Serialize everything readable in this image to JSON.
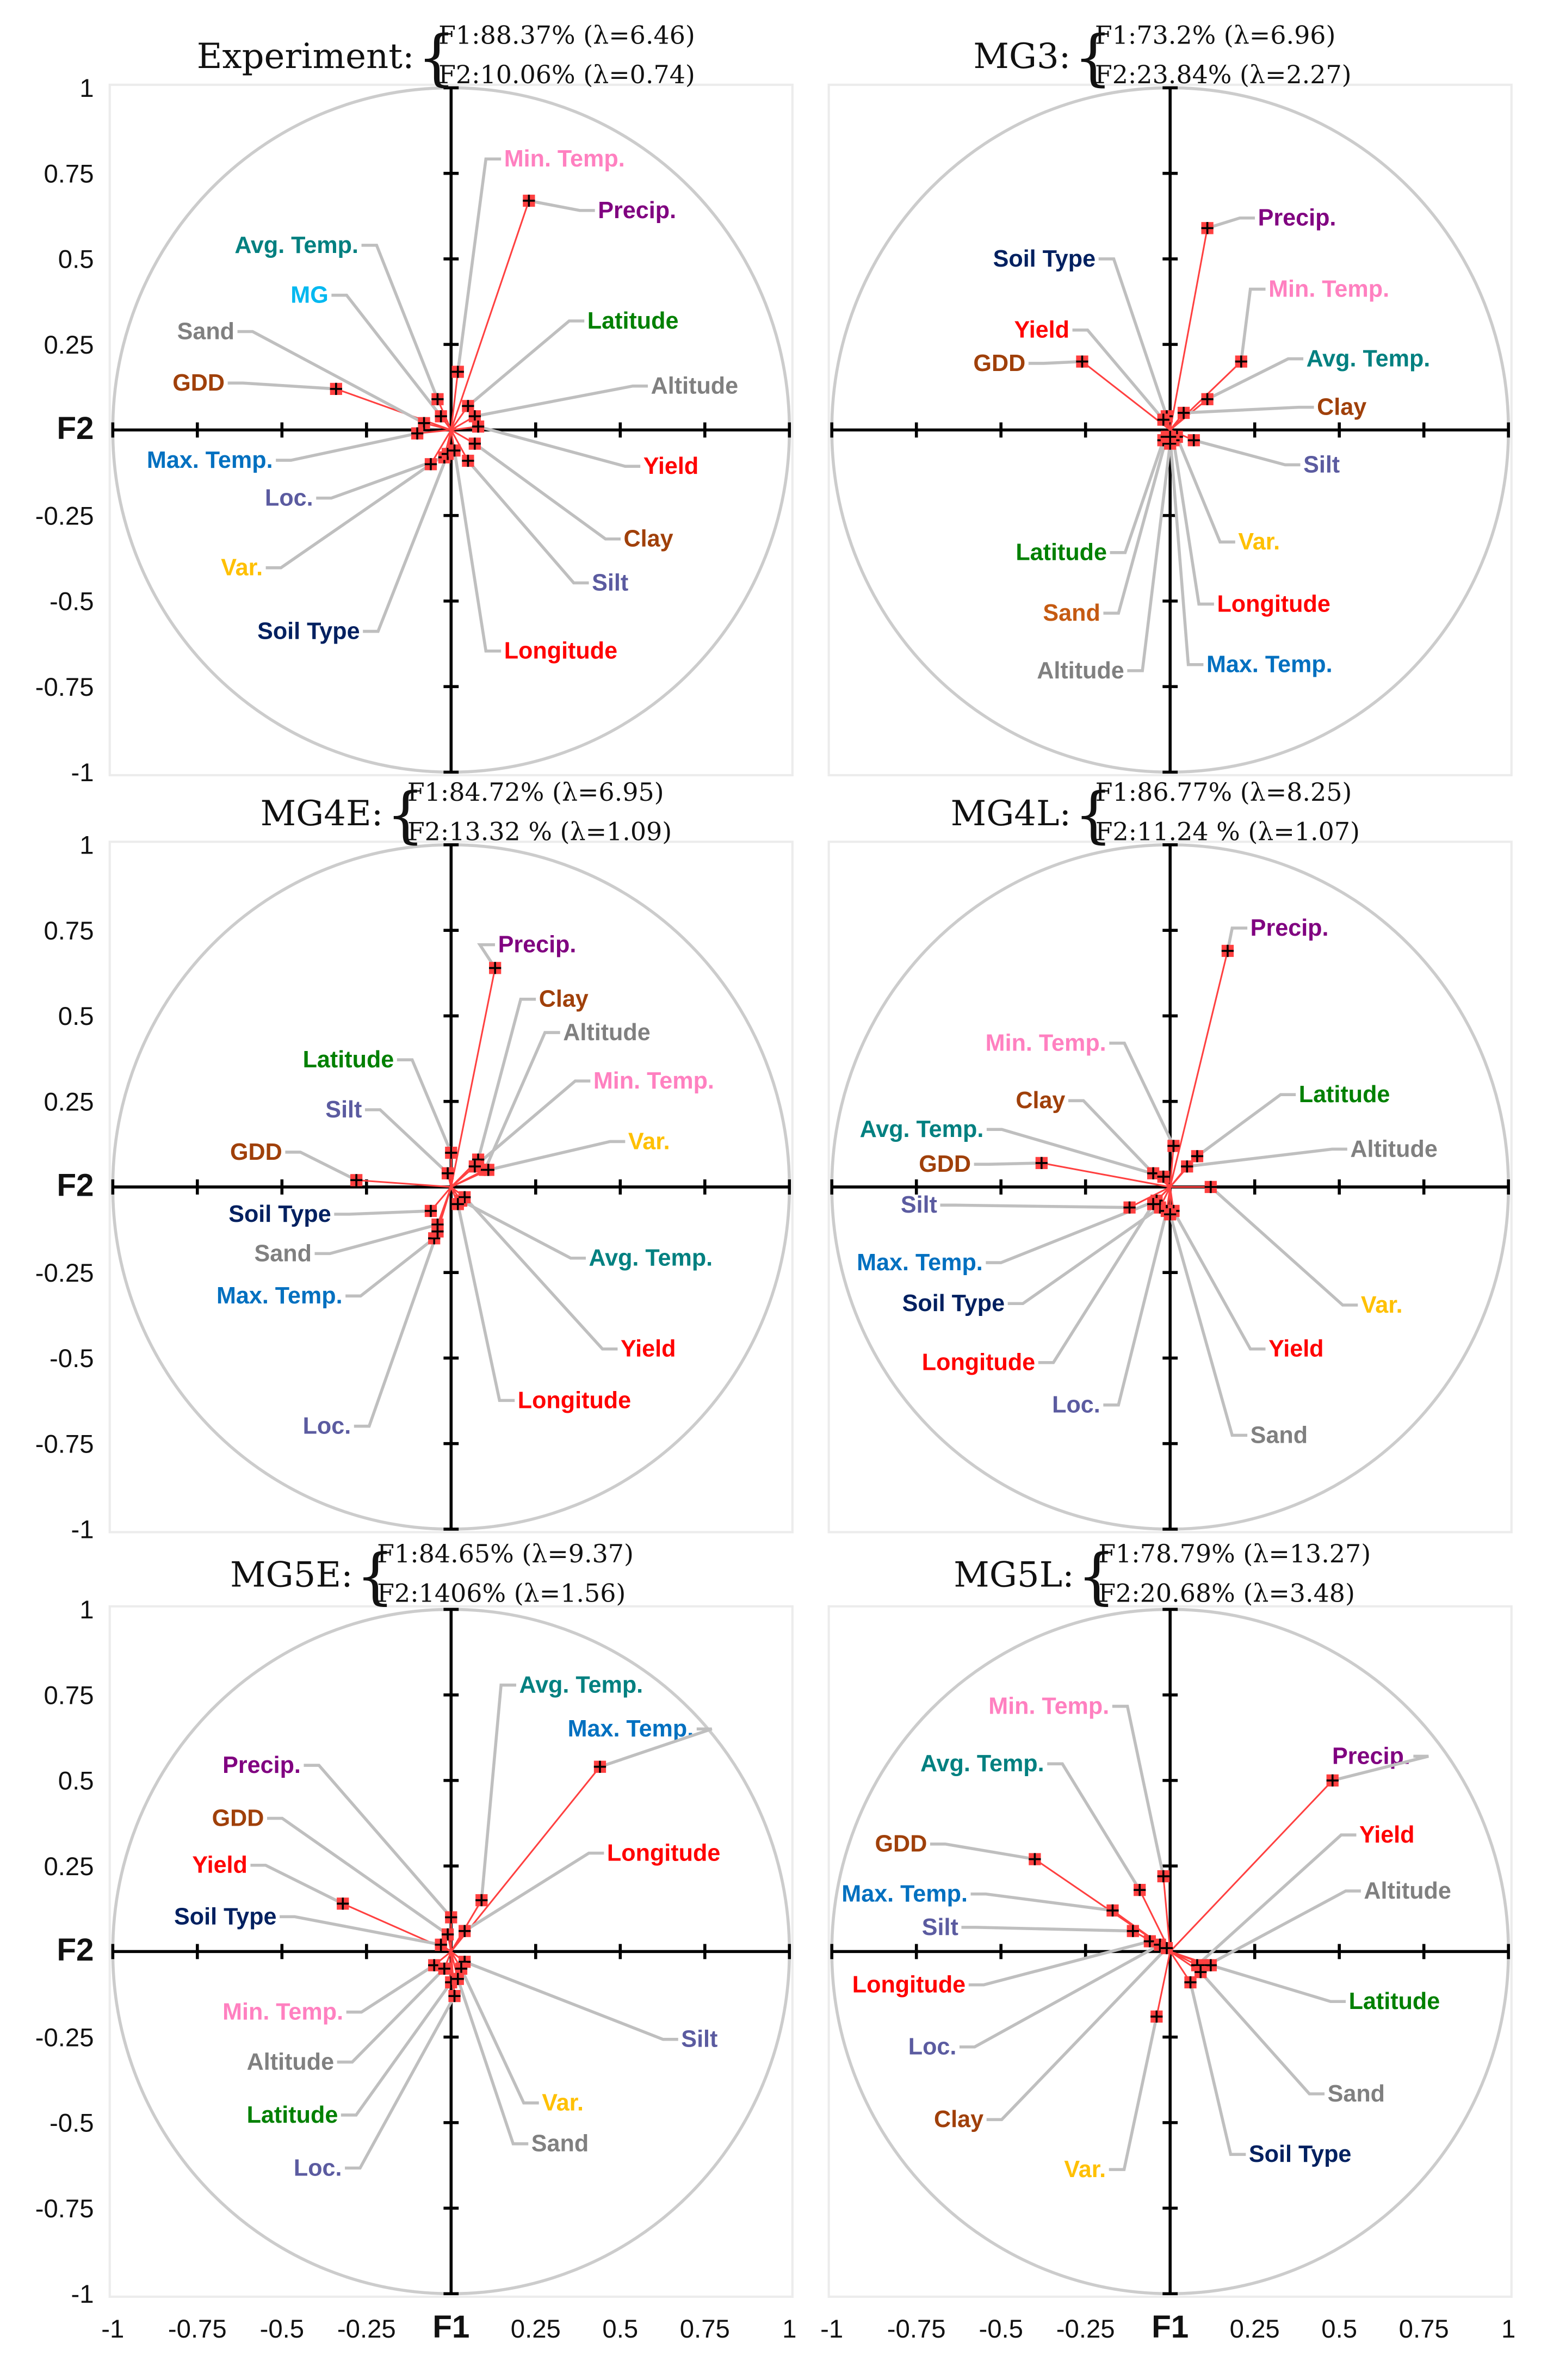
{
  "colors": {
    "pink": "#ff80c0",
    "purple": "#800080",
    "teal": "#008080",
    "cyan": "#00b8f0",
    "green": "#008000",
    "gray": "#808080",
    "brown": "#a0400a",
    "blue": "#0070c0",
    "red": "#ff0000",
    "slate": "#5b5ba0",
    "gold": "#ffc000",
    "navy": "#002060",
    "orange": "#c55a11",
    "vector": "#ff4040",
    "leader": "#bfbfbf",
    "circle": "#cccccc"
  },
  "chart_data": [
    {
      "type": "scatter",
      "name": "Experiment:",
      "f1": "F1:88.37% (λ=6.46)",
      "f2": "F2:10.06% (λ=0.74)",
      "xlabel": "F1",
      "ylabel": "F2",
      "xlim": [
        -1,
        1
      ],
      "ylim": [
        -1,
        1
      ],
      "variables": [
        {
          "name": "Min. Temp.",
          "x": 0.02,
          "y": 0.17,
          "color": "pink"
        },
        {
          "name": "Precip.",
          "x": 0.23,
          "y": 0.67,
          "color": "purple"
        },
        {
          "name": "Avg. Temp.",
          "x": -0.04,
          "y": 0.09,
          "color": "teal"
        },
        {
          "name": "MG",
          "x": -0.03,
          "y": 0.04,
          "color": "cyan"
        },
        {
          "name": "Latitude",
          "x": 0.05,
          "y": 0.07,
          "color": "green"
        },
        {
          "name": "Sand",
          "x": -0.08,
          "y": 0.02,
          "color": "gray"
        },
        {
          "name": "Altitude",
          "x": 0.07,
          "y": 0.04,
          "color": "gray"
        },
        {
          "name": "GDD",
          "x": -0.34,
          "y": 0.12,
          "color": "brown"
        },
        {
          "name": "Max. Temp.",
          "x": -0.1,
          "y": -0.01,
          "color": "blue"
        },
        {
          "name": "Yield",
          "x": 0.08,
          "y": 0.01,
          "color": "red"
        },
        {
          "name": "Loc.",
          "x": -0.02,
          "y": -0.08,
          "color": "slate"
        },
        {
          "name": "Clay",
          "x": 0.07,
          "y": -0.04,
          "color": "brown"
        },
        {
          "name": "Var.",
          "x": -0.06,
          "y": -0.1,
          "color": "gold"
        },
        {
          "name": "Silt",
          "x": 0.05,
          "y": -0.09,
          "color": "slate"
        },
        {
          "name": "Soil Type",
          "x": -0.01,
          "y": -0.07,
          "color": "navy"
        },
        {
          "name": "Longitude",
          "x": 0.01,
          "y": -0.06,
          "color": "red"
        }
      ]
    },
    {
      "type": "scatter",
      "name": "MG3:",
      "f1": "F1:73.2% (λ=6.96)",
      "f2": "F2:23.84% (λ=2.27)",
      "xlabel": "F1",
      "ylabel": "F2",
      "xlim": [
        -1,
        1
      ],
      "ylim": [
        -1,
        1
      ],
      "variables": [
        {
          "name": "Precip.",
          "x": 0.11,
          "y": 0.59,
          "color": "purple"
        },
        {
          "name": "Soil Type",
          "x": -0.01,
          "y": 0.04,
          "color": "navy"
        },
        {
          "name": "Min. Temp.",
          "x": 0.21,
          "y": 0.2,
          "color": "pink"
        },
        {
          "name": "Yield",
          "x": -0.02,
          "y": 0.03,
          "color": "red"
        },
        {
          "name": "GDD",
          "x": -0.26,
          "y": 0.2,
          "color": "brown"
        },
        {
          "name": "Avg. Temp.",
          "x": 0.11,
          "y": 0.09,
          "color": "teal"
        },
        {
          "name": "Clay",
          "x": 0.04,
          "y": 0.05,
          "color": "brown"
        },
        {
          "name": "Silt",
          "x": 0.07,
          "y": -0.03,
          "color": "slate"
        },
        {
          "name": "Var.",
          "x": 0.02,
          "y": -0.02,
          "color": "gold"
        },
        {
          "name": "Latitude",
          "x": -0.02,
          "y": -0.03,
          "color": "green"
        },
        {
          "name": "Longitude",
          "x": 0.01,
          "y": -0.03,
          "color": "red"
        },
        {
          "name": "Sand",
          "x": -0.01,
          "y": -0.02,
          "color": "orange"
        },
        {
          "name": "Altitude",
          "x": 0.0,
          "y": -0.04,
          "color": "gray"
        },
        {
          "name": "Max. Temp.",
          "x": 0.0,
          "y": -0.02,
          "color": "blue"
        }
      ]
    },
    {
      "type": "scatter",
      "name": "MG4E:",
      "f1": "F1:84.72% (λ=6.95)",
      "f2": "F2:13.32 % (λ=1.09)",
      "xlabel": "F1",
      "ylabel": "F2",
      "xlim": [
        -1,
        1
      ],
      "ylim": [
        -1,
        1
      ],
      "variables": [
        {
          "name": "Precip.",
          "x": 0.13,
          "y": 0.64,
          "color": "purple"
        },
        {
          "name": "Clay",
          "x": 0.08,
          "y": 0.08,
          "color": "brown"
        },
        {
          "name": "Altitude",
          "x": 0.1,
          "y": 0.05,
          "color": "gray"
        },
        {
          "name": "Latitude",
          "x": 0.0,
          "y": 0.1,
          "color": "green"
        },
        {
          "name": "Min. Temp.",
          "x": 0.07,
          "y": 0.06,
          "color": "pink"
        },
        {
          "name": "Silt",
          "x": -0.01,
          "y": 0.04,
          "color": "slate"
        },
        {
          "name": "Var.",
          "x": 0.11,
          "y": 0.05,
          "color": "gold"
        },
        {
          "name": "GDD",
          "x": -0.28,
          "y": 0.02,
          "color": "brown"
        },
        {
          "name": "Soil Type",
          "x": -0.06,
          "y": -0.07,
          "color": "navy"
        },
        {
          "name": "Sand",
          "x": -0.04,
          "y": -0.11,
          "color": "gray"
        },
        {
          "name": "Avg. Temp.",
          "x": 0.03,
          "y": -0.04,
          "color": "teal"
        },
        {
          "name": "Max. Temp.",
          "x": -0.05,
          "y": -0.15,
          "color": "blue"
        },
        {
          "name": "Yield",
          "x": 0.04,
          "y": -0.03,
          "color": "red"
        },
        {
          "name": "Longitude",
          "x": 0.02,
          "y": -0.05,
          "color": "red"
        },
        {
          "name": "Loc.",
          "x": -0.04,
          "y": -0.13,
          "color": "slate"
        }
      ]
    },
    {
      "type": "scatter",
      "name": "MG4L:",
      "f1": "F1:86.77% (λ=8.25)",
      "f2": "F2:11.24 % (λ=1.07)",
      "xlabel": "F1",
      "ylabel": "F2",
      "xlim": [
        -1,
        1
      ],
      "ylim": [
        -1,
        1
      ],
      "variables": [
        {
          "name": "Precip.",
          "x": 0.17,
          "y": 0.69,
          "color": "purple"
        },
        {
          "name": "Min. Temp.",
          "x": 0.01,
          "y": 0.12,
          "color": "pink"
        },
        {
          "name": "Latitude",
          "x": 0.08,
          "y": 0.09,
          "color": "green"
        },
        {
          "name": "Clay",
          "x": -0.05,
          "y": 0.04,
          "color": "brown"
        },
        {
          "name": "Altitude",
          "x": 0.05,
          "y": 0.06,
          "color": "gray"
        },
        {
          "name": "Avg. Temp.",
          "x": -0.02,
          "y": 0.03,
          "color": "teal"
        },
        {
          "name": "GDD",
          "x": -0.38,
          "y": 0.07,
          "color": "brown"
        },
        {
          "name": "Silt",
          "x": -0.12,
          "y": -0.06,
          "color": "slate"
        },
        {
          "name": "Max. Temp.",
          "x": -0.04,
          "y": -0.04,
          "color": "blue"
        },
        {
          "name": "Var.",
          "x": 0.12,
          "y": 0.0,
          "color": "gold"
        },
        {
          "name": "Soil Type",
          "x": -0.03,
          "y": -0.06,
          "color": "navy"
        },
        {
          "name": "Yield",
          "x": 0.01,
          "y": -0.07,
          "color": "red"
        },
        {
          "name": "Longitude",
          "x": -0.05,
          "y": -0.05,
          "color": "red"
        },
        {
          "name": "Loc.",
          "x": -0.01,
          "y": -0.07,
          "color": "slate"
        },
        {
          "name": "Sand",
          "x": 0.0,
          "y": -0.08,
          "color": "gray"
        }
      ]
    },
    {
      "type": "scatter",
      "name": "MG5E:",
      "f1": "F1:84.65% (λ=9.37)",
      "f2": "F2:1406% (λ=1.56)",
      "xlabel": "F1",
      "ylabel": "F2",
      "xlim": [
        -1,
        1
      ],
      "ylim": [
        -1,
        1
      ],
      "variables": [
        {
          "name": "Avg. Temp.",
          "x": 0.09,
          "y": 0.15,
          "color": "teal"
        },
        {
          "name": "Max. Temp.",
          "x": 0.44,
          "y": 0.54,
          "color": "blue"
        },
        {
          "name": "Precip.",
          "x": 0.0,
          "y": 0.1,
          "color": "purple"
        },
        {
          "name": "GDD",
          "x": -0.01,
          "y": 0.05,
          "color": "brown"
        },
        {
          "name": "Longitude",
          "x": 0.04,
          "y": 0.06,
          "color": "red"
        },
        {
          "name": "Yield",
          "x": -0.32,
          "y": 0.14,
          "color": "red"
        },
        {
          "name": "Soil Type",
          "x": -0.03,
          "y": 0.02,
          "color": "navy"
        },
        {
          "name": "Min. Temp.",
          "x": -0.05,
          "y": -0.04,
          "color": "pink"
        },
        {
          "name": "Silt",
          "x": 0.04,
          "y": -0.03,
          "color": "slate"
        },
        {
          "name": "Altitude",
          "x": -0.02,
          "y": -0.05,
          "color": "gray"
        },
        {
          "name": "Var.",
          "x": 0.03,
          "y": -0.05,
          "color": "gold"
        },
        {
          "name": "Latitude",
          "x": 0.0,
          "y": -0.09,
          "color": "green"
        },
        {
          "name": "Sand",
          "x": 0.02,
          "y": -0.08,
          "color": "gray"
        },
        {
          "name": "Loc.",
          "x": 0.01,
          "y": -0.13,
          "color": "slate"
        }
      ]
    },
    {
      "type": "scatter",
      "name": "MG5L:",
      "f1": "F1:78.79% (λ=13.27)",
      "f2": "F2:20.68% (λ=3.48)",
      "xlabel": "F1",
      "ylabel": "F2",
      "xlim": [
        -1,
        1
      ],
      "ylim": [
        -1,
        1
      ],
      "variables": [
        {
          "name": "Min. Temp.",
          "x": -0.02,
          "y": 0.22,
          "color": "pink"
        },
        {
          "name": "Precip.",
          "x": 0.48,
          "y": 0.5,
          "color": "purple"
        },
        {
          "name": "Avg. Temp.",
          "x": -0.09,
          "y": 0.18,
          "color": "teal"
        },
        {
          "name": "Yield",
          "x": 0.08,
          "y": -0.04,
          "color": "red"
        },
        {
          "name": "GDD",
          "x": -0.4,
          "y": 0.27,
          "color": "brown"
        },
        {
          "name": "Max. Temp.",
          "x": -0.17,
          "y": 0.12,
          "color": "blue"
        },
        {
          "name": "Altitude",
          "x": 0.11,
          "y": -0.04,
          "color": "gray"
        },
        {
          "name": "Silt",
          "x": -0.11,
          "y": 0.06,
          "color": "slate"
        },
        {
          "name": "Longitude",
          "x": -0.06,
          "y": 0.03,
          "color": "red"
        },
        {
          "name": "Latitude",
          "x": 0.12,
          "y": -0.04,
          "color": "green"
        },
        {
          "name": "Loc.",
          "x": -0.03,
          "y": 0.02,
          "color": "slate"
        },
        {
          "name": "Sand",
          "x": 0.09,
          "y": -0.06,
          "color": "gray"
        },
        {
          "name": "Clay",
          "x": -0.01,
          "y": 0.01,
          "color": "brown"
        },
        {
          "name": "Soil Type",
          "x": 0.06,
          "y": -0.09,
          "color": "navy"
        },
        {
          "name": "Var.",
          "x": -0.04,
          "y": -0.19,
          "color": "gold"
        }
      ]
    }
  ],
  "axes": {
    "yticks": [
      "1",
      "0.75",
      "0.5",
      "0.25",
      "F2",
      "-0.25",
      "-0.5",
      "-0.75",
      "-1"
    ],
    "xticks": [
      "-1",
      "-0.75",
      "-0.5",
      "-0.25",
      "F1",
      "0.25",
      "0.5",
      "0.75",
      "1"
    ]
  }
}
